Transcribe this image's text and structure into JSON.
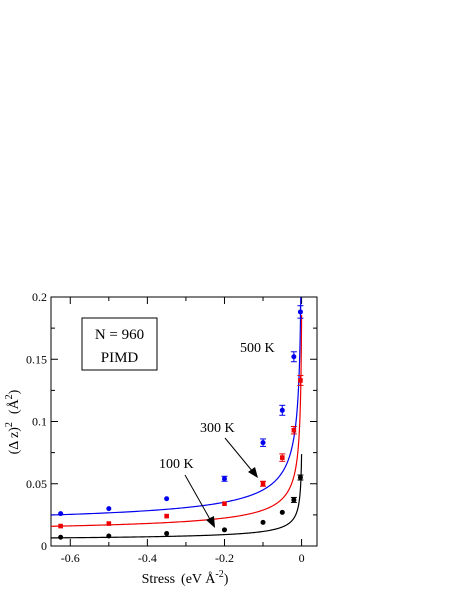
{
  "chart_data": {
    "type": "scatter",
    "xlabel_main": "Stress",
    "xlabel_unit": "(eV Å",
    "xlabel_exp": "-2",
    "xlabel_close": ")",
    "ylabel_main": "(Δ z)",
    "ylabel_exp": "2",
    "ylabel_unit": "(Å",
    "ylabel_unit_exp": "2",
    "ylabel_close": ")",
    "xlim": [
      -0.65,
      0.04
    ],
    "ylim": [
      0,
      0.2
    ],
    "xticks": [
      {
        "value": -0.6,
        "label": "-0.6"
      },
      {
        "value": -0.4,
        "label": "-0.4"
      },
      {
        "value": -0.2,
        "label": "-0.2"
      },
      {
        "value": 0,
        "label": "0"
      }
    ],
    "yticks": [
      {
        "value": 0,
        "label": "0"
      },
      {
        "value": 0.05,
        "label": "0.05"
      },
      {
        "value": 0.1,
        "label": "0.1"
      },
      {
        "value": 0.15,
        "label": "0.15"
      },
      {
        "value": 0.2,
        "label": "0.2"
      }
    ],
    "legend_box": {
      "line1": "N = 960",
      "line2": "PIMD"
    },
    "series": [
      {
        "name": "500 K",
        "color": "#0000ee",
        "marker": "circle",
        "points": [
          {
            "x": -0.625,
            "y": 0.026
          },
          {
            "x": -0.5,
            "y": 0.03
          },
          {
            "x": -0.35,
            "y": 0.038
          },
          {
            "x": -0.2,
            "y": 0.054,
            "err": 0.002
          },
          {
            "x": -0.1,
            "y": 0.083,
            "err": 0.003
          },
          {
            "x": -0.05,
            "y": 0.109,
            "err": 0.004
          },
          {
            "x": -0.02,
            "y": 0.152,
            "err": 0.004
          },
          {
            "x": -0.003,
            "y": 0.188,
            "err": 0.005
          }
        ],
        "fit": {
          "a": 0.0135,
          "b": 0.009,
          "p": 0.55
        }
      },
      {
        "name": "300 K",
        "color": "#ee0000",
        "marker": "square",
        "points": [
          {
            "x": -0.625,
            "y": 0.016
          },
          {
            "x": -0.5,
            "y": 0.018
          },
          {
            "x": -0.35,
            "y": 0.024
          },
          {
            "x": -0.2,
            "y": 0.034
          },
          {
            "x": -0.1,
            "y": 0.05,
            "err": 0.002
          },
          {
            "x": -0.05,
            "y": 0.071,
            "err": 0.003
          },
          {
            "x": -0.02,
            "y": 0.093,
            "err": 0.003
          },
          {
            "x": -0.003,
            "y": 0.133,
            "err": 0.004
          }
        ],
        "fit": {
          "a": 0.0085,
          "b": 0.0058,
          "p": 0.55
        }
      },
      {
        "name": "100 K",
        "color": "#000000",
        "marker": "circle",
        "points": [
          {
            "x": -0.625,
            "y": 0.007
          },
          {
            "x": -0.5,
            "y": 0.008
          },
          {
            "x": -0.35,
            "y": 0.01
          },
          {
            "x": -0.2,
            "y": 0.013
          },
          {
            "x": -0.1,
            "y": 0.019
          },
          {
            "x": -0.05,
            "y": 0.027
          },
          {
            "x": -0.02,
            "y": 0.037,
            "err": 0.002
          },
          {
            "x": -0.003,
            "y": 0.055,
            "err": 0.002
          }
        ],
        "fit": {
          "a": 0.0036,
          "b": 0.0023,
          "p": 0.55
        }
      }
    ],
    "annotations": [
      {
        "text": "500 K",
        "series": "500 K"
      },
      {
        "text": "300 K",
        "series": "300 K"
      },
      {
        "text": "100 K",
        "series": "100 K"
      }
    ]
  }
}
